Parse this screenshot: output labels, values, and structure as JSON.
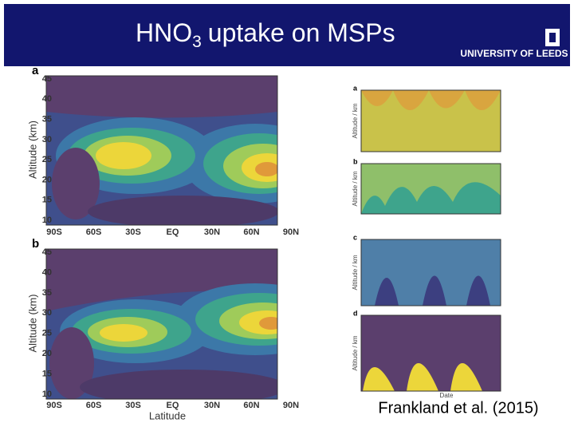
{
  "header": {
    "title_main": "HNO",
    "title_sub": "3",
    "title_rest": "uptake on MSPs",
    "logo_text": "UNIVERSITY OF LEEDS"
  },
  "left_plots": [
    {
      "label": "a",
      "ylabel": "Altitude (km)",
      "yticks": [
        "45",
        "40",
        "35",
        "30",
        "25",
        "20",
        "15",
        "10"
      ],
      "xticks": [
        "90S",
        "60S",
        "30S",
        "EQ",
        "30N",
        "60N",
        "90N"
      ]
    },
    {
      "label": "b",
      "ylabel": "Altitude (km)",
      "yticks": [
        "45",
        "40",
        "35",
        "30",
        "25",
        "20",
        "15",
        "10"
      ],
      "xticks": [
        "90S",
        "60S",
        "30S",
        "EQ",
        "30N",
        "60N",
        "90N"
      ],
      "xlabel": "Latitude"
    }
  ],
  "right_panels": [
    {
      "label": "a",
      "ylabel": "Altitude / km"
    },
    {
      "label": "b",
      "ylabel": "Altitude / km"
    },
    {
      "label": "c",
      "ylabel": "Altitude / km"
    },
    {
      "label": "d",
      "ylabel": "Altitude / km"
    }
  ],
  "right_xlabel": "Date",
  "caption": "Frankland et al. (2015)"
}
